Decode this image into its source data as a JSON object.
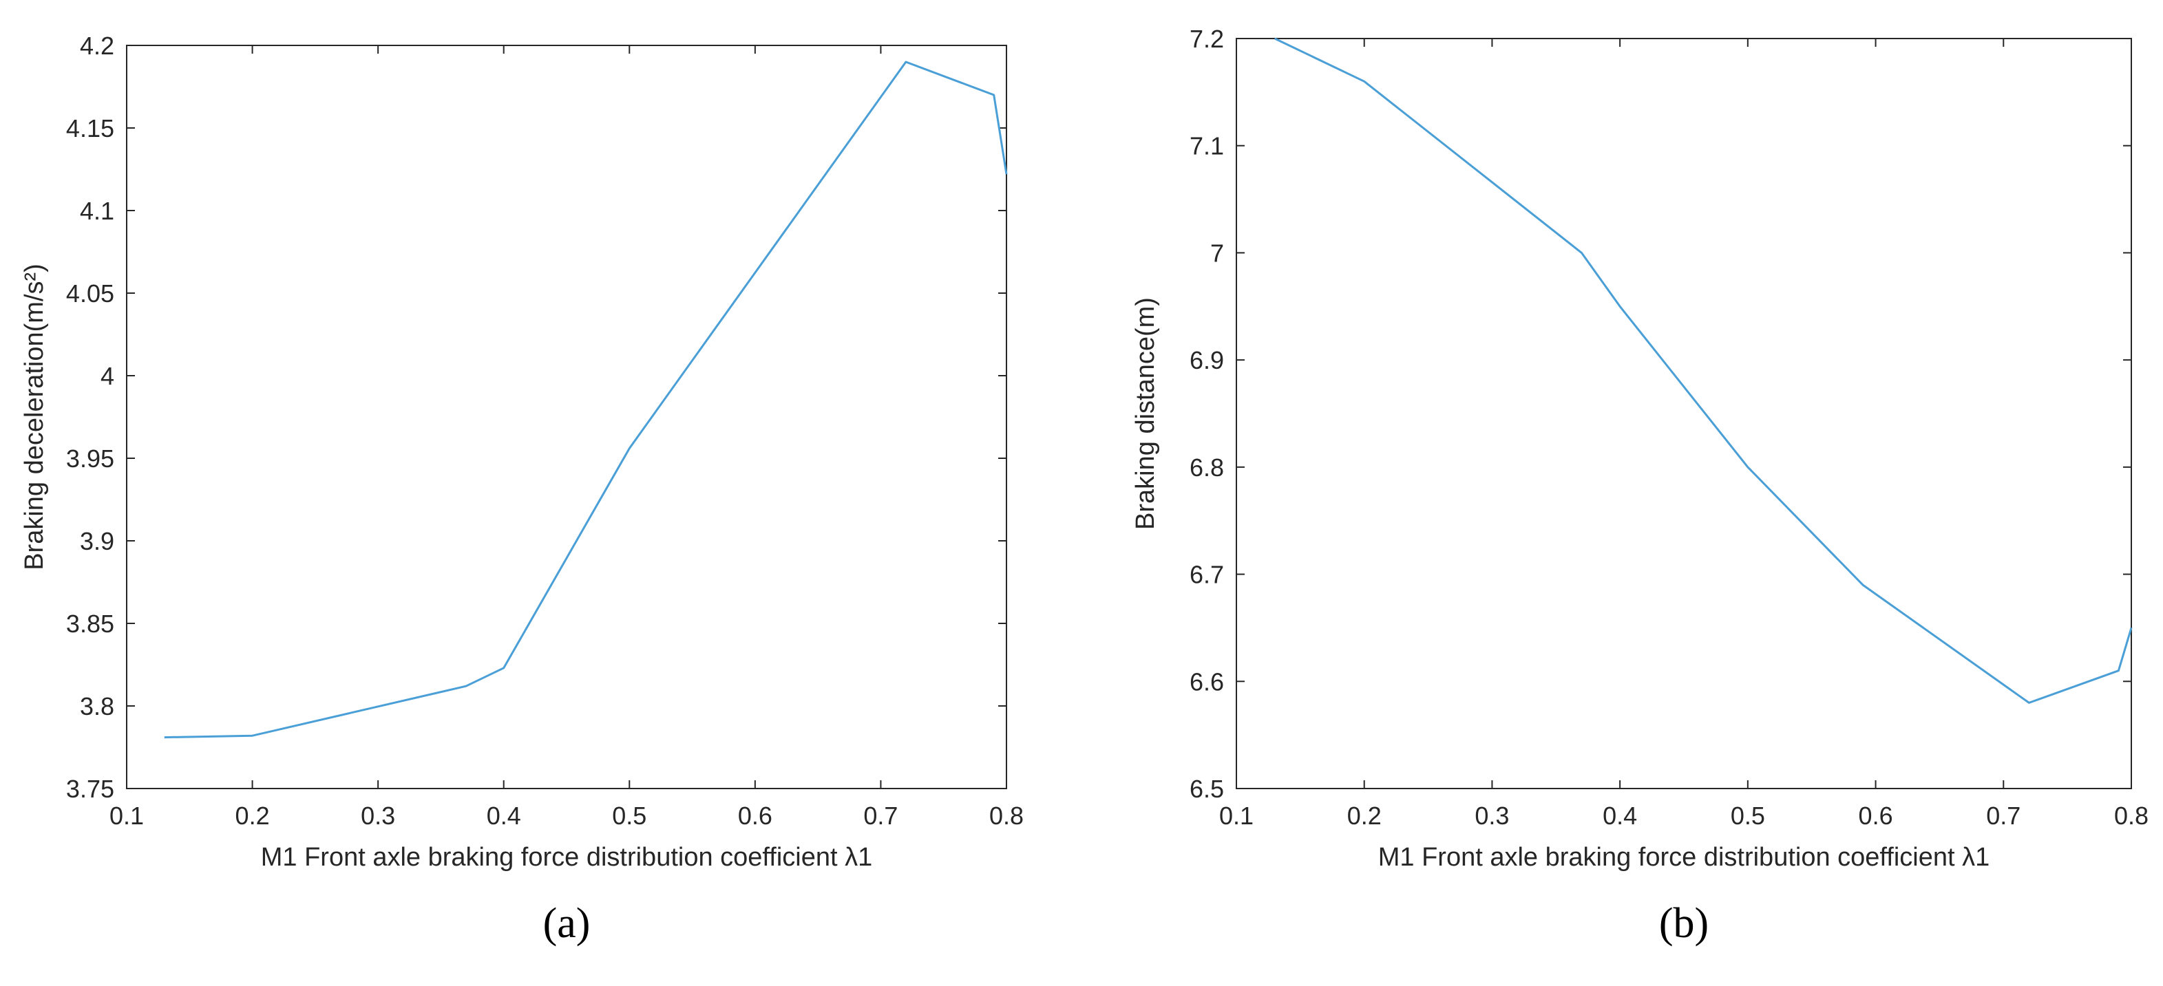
{
  "line_color": "#4a9fd7",
  "chart_data": [
    {
      "type": "line",
      "caption": "(a)",
      "xlabel": "M1 Front axle braking force distribution coefficient λ1",
      "ylabel": "Braking deceleration(m/s²)",
      "xlim": [
        0.1,
        0.8
      ],
      "ylim": [
        3.75,
        4.2
      ],
      "xticks": [
        "0.1",
        "0.2",
        "0.3",
        "0.4",
        "0.5",
        "0.6",
        "0.7",
        "0.8"
      ],
      "yticks": [
        "3.75",
        "3.8",
        "3.85",
        "3.9",
        "3.95",
        "4",
        "4.05",
        "4.1",
        "4.15",
        "4.2"
      ],
      "grid": false,
      "series": [
        {
          "x": [
            0.13,
            0.2,
            0.37,
            0.4,
            0.5,
            0.72,
            0.79,
            0.8
          ],
          "y": [
            3.781,
            3.782,
            3.812,
            3.823,
            3.956,
            4.19,
            4.17,
            4.122
          ]
        }
      ]
    },
    {
      "type": "line",
      "caption": "(b)",
      "xlabel": "M1 Front axle braking force distribution coefficient λ1",
      "ylabel": "Braking distance(m)",
      "xlim": [
        0.1,
        0.8
      ],
      "ylim": [
        6.5,
        7.2
      ],
      "xticks": [
        "0.1",
        "0.2",
        "0.3",
        "0.4",
        "0.5",
        "0.6",
        "0.7",
        "0.8"
      ],
      "yticks": [
        "6.5",
        "6.6",
        "6.7",
        "6.8",
        "6.9",
        "7",
        "7.1",
        "7.2"
      ],
      "grid": false,
      "series": [
        {
          "x": [
            0.13,
            0.2,
            0.37,
            0.4,
            0.5,
            0.59,
            0.72,
            0.79,
            0.8
          ],
          "y": [
            7.2,
            7.16,
            7.0,
            6.95,
            6.8,
            6.69,
            6.58,
            6.61,
            6.65
          ]
        }
      ]
    }
  ]
}
